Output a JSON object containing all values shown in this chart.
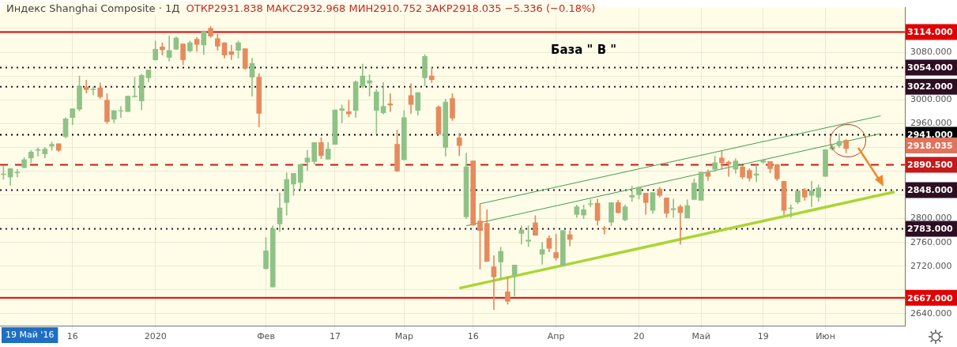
{
  "chart_data": {
    "type": "candlestick",
    "title": "Индекс Shanghai Composite · 1Д",
    "subtitle": "ОТКР2931.838 МАКС2932.968 МИН2910.752 ЗАКР2918.035 −5.336 (−0.18%)",
    "categories": [
      null,
      null,
      null,
      null,
      null,
      null,
      null,
      null,
      null,
      null,
      "16",
      null,
      null,
      null,
      null,
      null,
      null,
      null,
      null,
      null,
      null,
      null,
      "2020",
      null,
      null,
      null,
      null,
      null,
      null,
      null,
      null,
      null,
      null,
      null,
      null,
      null,
      null,
      null,
      "Фев",
      null,
      null,
      null,
      null,
      null,
      null,
      null,
      null,
      null,
      "17",
      null,
      null,
      null,
      null,
      null,
      null,
      null,
      null,
      null,
      "Мар",
      null,
      null,
      null,
      null,
      null,
      null,
      null,
      null,
      null,
      "16",
      null,
      null,
      null,
      null,
      null,
      null,
      null,
      null,
      null,
      null,
      null,
      "Апр",
      null,
      null,
      null,
      null,
      null,
      null,
      null,
      null,
      null,
      null,
      null,
      "20",
      null,
      null,
      null,
      null,
      null,
      null,
      null,
      null,
      "Май",
      null,
      null,
      null,
      null,
      null,
      null,
      null,
      null,
      "19",
      null,
      null,
      null,
      null,
      null,
      null,
      null,
      null,
      "Июн",
      null,
      null,
      null,
      null,
      null,
      null,
      null,
      null,
      null,
      null,
      null
    ],
    "ohlc": [
      [
        2874,
        2888,
        2866,
        2875
      ],
      [
        2870,
        2884,
        2856,
        2884
      ],
      [
        2877,
        2883,
        2870,
        2878
      ],
      [
        2886,
        2903,
        2885,
        2899
      ],
      [
        2902,
        2915,
        2894,
        2912
      ],
      [
        2915,
        2919,
        2905,
        2916
      ],
      [
        2909,
        2920,
        2902,
        2917
      ],
      [
        2922,
        2929,
        2915,
        2925
      ],
      [
        2926,
        2926,
        2913,
        2915
      ],
      [
        2938,
        2970,
        2936,
        2968
      ],
      [
        2970,
        2985,
        2958,
        2985
      ],
      [
        2984,
        3040,
        2981,
        3023
      ],
      [
        3021,
        3033,
        3011,
        3017
      ],
      [
        3017,
        3022,
        3008,
        3018
      ],
      [
        3020,
        3028,
        3002,
        3005
      ],
      [
        2999,
        3010,
        2960,
        2963
      ],
      [
        2967,
        2982,
        2961,
        2982
      ],
      [
        2981,
        2989,
        2970,
        2982
      ],
      [
        2980,
        3006,
        2980,
        3006
      ],
      [
        3005,
        3038,
        3004,
        3006
      ],
      [
        2998,
        3043,
        2983,
        3041
      ],
      [
        3037,
        3050,
        3030,
        3050
      ],
      [
        3067,
        3099,
        3066,
        3085
      ],
      [
        3089,
        3096,
        3075,
        3084
      ],
      [
        3071,
        3107,
        3065,
        3083
      ],
      [
        3085,
        3106,
        3084,
        3104
      ],
      [
        3094,
        3094,
        3059,
        3067
      ],
      [
        3082,
        3099,
        3080,
        3096
      ],
      [
        3102,
        3105,
        3081,
        3093
      ],
      [
        3092,
        3116,
        3076,
        3114
      ],
      [
        3120,
        3123,
        3105,
        3107
      ],
      [
        3103,
        3110,
        3083,
        3090
      ],
      [
        3096,
        3096,
        3070,
        3075
      ],
      [
        3081,
        3092,
        3067,
        3076
      ],
      [
        3083,
        3099,
        3070,
        3096
      ],
      [
        3086,
        3086,
        3051,
        3053
      ],
      [
        3038,
        3070,
        3006,
        3061
      ],
      [
        3038,
        3044,
        2954,
        2977
      ],
      [
        2716,
        2768,
        2715,
        2746
      ],
      [
        2685,
        2788,
        2685,
        2783
      ],
      [
        2791,
        2843,
        2778,
        2818
      ],
      [
        2827,
        2877,
        2806,
        2866
      ],
      [
        2858,
        2876,
        2839,
        2876
      ],
      [
        2861,
        2891,
        2849,
        2891
      ],
      [
        2895,
        2915,
        2881,
        2902
      ],
      [
        2896,
        2928,
        2892,
        2928
      ],
      [
        2928,
        2936,
        2901,
        2906
      ],
      [
        2900,
        2928,
        2900,
        2917
      ],
      [
        2925,
        2983,
        2925,
        2983
      ],
      [
        2982,
        2991,
        2961,
        2985
      ],
      [
        2980,
        2999,
        2971,
        2976
      ],
      [
        2982,
        3032,
        2970,
        3030
      ],
      [
        3023,
        3060,
        3020,
        3040
      ],
      [
        3028,
        3042,
        3006,
        3032
      ],
      [
        2982,
        3017,
        2943,
        3013
      ],
      [
        2978,
        3029,
        2976,
        2989
      ],
      [
        2993,
        3010,
        2980,
        2991
      ],
      [
        2925,
        2949,
        2879,
        2880
      ],
      [
        2899,
        2982,
        2899,
        2970
      ],
      [
        3007,
        3027,
        2977,
        2992
      ],
      [
        2982,
        3012,
        2974,
        3012
      ],
      [
        3037,
        3076,
        3023,
        3073
      ],
      [
        3040,
        3054,
        3029,
        3034
      ],
      [
        2988,
        2990,
        2942,
        2942
      ],
      [
        2920,
        3001,
        2905,
        2996
      ],
      [
        3002,
        3010,
        2965,
        2969
      ],
      [
        2936,
        2944,
        2906,
        2923
      ],
      [
        2803,
        2910,
        2800,
        2887
      ],
      [
        2897,
        2897,
        2789,
        2789
      ],
      [
        2796,
        2825,
        2715,
        2780
      ],
      [
        2792,
        2815,
        2728,
        2728
      ],
      [
        2719,
        2738,
        2647,
        2702
      ],
      [
        2727,
        2752,
        2697,
        2745
      ],
      [
        2677,
        2702,
        2656,
        2661
      ],
      [
        2704,
        2722,
        2670,
        2722
      ],
      [
        2775,
        2788,
        2757,
        2781
      ],
      [
        2762,
        2788,
        2753,
        2764
      ],
      [
        2793,
        2805,
        2772,
        2772
      ],
      [
        2740,
        2760,
        2723,
        2748
      ],
      [
        2767,
        2771,
        2744,
        2750
      ],
      [
        2743,
        2774,
        2730,
        2734
      ],
      [
        2721,
        2780,
        2721,
        2780
      ],
      [
        2773,
        2780,
        2754,
        2765
      ],
      [
        2807,
        2823,
        2802,
        2820
      ],
      [
        2806,
        2823,
        2800,
        2815
      ],
      [
        2824,
        2832,
        2820,
        2825
      ],
      [
        2826,
        2833,
        2789,
        2797
      ],
      [
        2784,
        2787,
        2774,
        2783
      ],
      [
        2794,
        2827,
        2788,
        2827
      ],
      [
        2827,
        2831,
        2809,
        2810
      ],
      [
        2798,
        2823,
        2796,
        2820
      ],
      [
        2836,
        2855,
        2829,
        2839
      ],
      [
        2840,
        2853,
        2833,
        2853
      ],
      [
        2843,
        2843,
        2807,
        2827
      ],
      [
        2814,
        2844,
        2809,
        2844
      ],
      [
        2850,
        2853,
        2836,
        2839
      ],
      [
        2835,
        2835,
        2802,
        2809
      ],
      [
        2815,
        2833,
        2802,
        2817
      ],
      [
        2820,
        2823,
        2757,
        2810
      ],
      [
        2801,
        2832,
        2801,
        2822
      ],
      [
        2832,
        2867,
        2832,
        2860
      ],
      [
        2831,
        2878,
        2831,
        2878
      ],
      [
        2877,
        2882,
        2864,
        2871
      ],
      [
        2883,
        2905,
        2879,
        2894
      ],
      [
        2902,
        2914,
        2883,
        2894
      ],
      [
        2895,
        2897,
        2871,
        2892
      ],
      [
        2883,
        2901,
        2876,
        2897
      ],
      [
        2887,
        2889,
        2867,
        2870
      ],
      [
        2881,
        2884,
        2863,
        2868
      ],
      [
        2873,
        2890,
        2862,
        2875
      ],
      [
        2895,
        2900,
        2893,
        2898
      ],
      [
        2896,
        2896,
        2877,
        2884
      ],
      [
        2891,
        2891,
        2864,
        2867
      ],
      [
        2863,
        2863,
        2807,
        2814
      ],
      [
        2817,
        2823,
        2802,
        2818
      ],
      [
        2828,
        2847,
        2825,
        2847
      ],
      [
        2848,
        2851,
        2831,
        2836
      ],
      [
        2839,
        2863,
        2820,
        2847
      ],
      [
        2836,
        2857,
        2829,
        2852
      ],
      [
        2871,
        2916,
        2871,
        2916
      ],
      [
        2917,
        2925,
        2915,
        2921
      ],
      [
        2923,
        2943,
        2920,
        2930
      ],
      [
        2931.838,
        2932.968,
        2910.752,
        2918.035
      ],
      null,
      null,
      null,
      null,
      null,
      null,
      null,
      null
    ],
    "colors": [
      "#8fc287",
      "#8fc287",
      "#8fc287",
      "#8fc287",
      "#8fc287",
      "#8fc287",
      "#8fc287",
      "#8fc287",
      "#e58b5f",
      "#8fc287",
      "#8fc287",
      "#8fc287",
      "#e58b5f",
      "#8fc287",
      "#e58b5f",
      "#e58b5f",
      "#8fc287",
      "#8fc287",
      "#8fc287",
      "#8fc287",
      "#8fc287",
      "#8fc287",
      "#8fc287",
      "#e58b5f",
      "#8fc287",
      "#8fc287",
      "#e58b5f",
      "#8fc287",
      "#e58b5f",
      "#8fc287",
      "#e58b5f",
      "#e58b5f",
      "#e58b5f",
      "#e58b5f",
      "#8fc287",
      "#e58b5f",
      "#8fc287",
      "#e58b5f",
      "#8fc287",
      "#8fc287",
      "#8fc287",
      "#8fc287",
      "#8fc287",
      "#8fc287",
      "#8fc287",
      "#8fc287",
      "#e58b5f",
      "#8fc287",
      "#8fc287",
      "#8fc287",
      "#e58b5f",
      "#8fc287",
      "#8fc287",
      "#8fc287",
      "#8fc287",
      "#8fc287",
      "#e58b5f",
      "#e58b5f",
      "#8fc287",
      "#e58b5f",
      "#8fc287",
      "#8fc287",
      "#e58b5f",
      "#e58b5f",
      "#8fc287",
      "#e58b5f",
      "#e58b5f",
      "#8fc287",
      "#e58b5f",
      "#e58b5f",
      "#e58b5f",
      "#e58b5f",
      "#8fc287",
      "#e58b5f",
      "#8fc287",
      "#8fc287",
      "#8fc287",
      "#e58b5f",
      "#8fc287",
      "#e58b5f",
      "#e58b5f",
      "#8fc287",
      "#e58b5f",
      "#8fc287",
      "#8fc287",
      "#8fc287",
      "#e58b5f",
      "#e58b5f",
      "#8fc287",
      "#e58b5f",
      "#8fc287",
      "#8fc287",
      "#8fc287",
      "#e58b5f",
      "#8fc287",
      "#e58b5f",
      "#e58b5f",
      "#8fc287",
      "#e58b5f",
      "#8fc287",
      "#8fc287",
      "#8fc287",
      "#e58b5f",
      "#8fc287",
      "#e58b5f",
      "#e58b5f",
      "#8fc287",
      "#e58b5f",
      "#e58b5f",
      "#8fc287",
      "#8fc287",
      "#e58b5f",
      "#e58b5f",
      "#e58b5f",
      "#8fc287",
      "#8fc287",
      "#e58b5f",
      "#8fc287",
      "#8fc287",
      "#8fc287",
      "#8fc287",
      "#8fc287",
      "#e58b5f",
      null,
      null,
      null,
      null,
      null,
      null,
      null,
      null
    ],
    "series": [
      {
        "type": "line",
        "color": "#3f9f52",
        "values": [
          null,
          null,
          null,
          null,
          null,
          null,
          null,
          null,
          null,
          null,
          null,
          null,
          null,
          null,
          null,
          null,
          null,
          null,
          null,
          null,
          null,
          null,
          null,
          null,
          null,
          null,
          null,
          null,
          null,
          null,
          null,
          null,
          null,
          null,
          null,
          null,
          null,
          null,
          null,
          null,
          null,
          null,
          null,
          null,
          null,
          null,
          null,
          null,
          null,
          null,
          null,
          null,
          null,
          null,
          null,
          null,
          null,
          null,
          null,
          null,
          null,
          null,
          null,
          null,
          null,
          null,
          null,
          null,
          null,
          2825,
          null,
          null,
          null,
          null,
          null,
          null,
          null,
          null,
          null,
          null,
          null,
          null,
          null,
          null,
          null,
          null,
          null,
          null,
          null,
          null,
          null,
          null,
          null,
          null,
          null,
          null,
          null,
          null,
          null,
          null,
          null,
          null,
          null,
          null,
          null,
          null,
          null,
          null,
          null,
          null,
          null,
          null,
          null,
          null,
          null,
          null,
          null,
          null,
          null,
          null,
          null,
          null,
          null,
          null,
          null,
          null,
          null,
          2973,
          null,
          null,
          null
        ]
      },
      {
        "type": "line",
        "color": "#3f9f52",
        "values": [
          null,
          null,
          null,
          null,
          null,
          null,
          null,
          null,
          null,
          null,
          null,
          null,
          null,
          null,
          null,
          null,
          null,
          null,
          null,
          null,
          null,
          null,
          null,
          null,
          null,
          null,
          null,
          null,
          null,
          null,
          null,
          null,
          null,
          null,
          null,
          null,
          null,
          null,
          null,
          null,
          null,
          null,
          null,
          null,
          null,
          null,
          null,
          null,
          null,
          null,
          null,
          null,
          null,
          null,
          null,
          null,
          null,
          null,
          null,
          null,
          null,
          null,
          null,
          null,
          null,
          null,
          null,
          2788,
          null,
          null,
          null,
          null,
          null,
          null,
          null,
          null,
          null,
          null,
          null,
          null,
          null,
          null,
          null,
          null,
          null,
          null,
          null,
          null,
          null,
          null,
          null,
          null,
          null,
          null,
          null,
          null,
          null,
          null,
          null,
          null,
          null,
          null,
          null,
          null,
          null,
          null,
          null,
          null,
          null,
          null,
          null,
          null,
          null,
          null,
          null,
          null,
          null,
          null,
          null,
          null,
          null,
          null,
          null,
          null,
          null,
          null,
          null,
          2943,
          null,
          null,
          null
        ]
      },
      {
        "type": "line",
        "color": "#a8d634",
        "values": [
          null,
          null,
          null,
          null,
          null,
          null,
          null,
          null,
          null,
          null,
          null,
          null,
          null,
          null,
          null,
          null,
          null,
          null,
          null,
          null,
          null,
          null,
          null,
          null,
          null,
          null,
          null,
          null,
          null,
          null,
          null,
          null,
          null,
          null,
          null,
          null,
          null,
          null,
          null,
          null,
          null,
          null,
          null,
          null,
          null,
          null,
          null,
          null,
          null,
          null,
          null,
          null,
          null,
          null,
          null,
          null,
          null,
          null,
          null,
          null,
          null,
          null,
          null,
          null,
          null,
          null,
          2683,
          null,
          null,
          null,
          null,
          null,
          null,
          null,
          null,
          null,
          null,
          null,
          null,
          null,
          null,
          null,
          null,
          null,
          null,
          null,
          null,
          null,
          null,
          null,
          null,
          null,
          null,
          null,
          null,
          null,
          null,
          null,
          null,
          null,
          null,
          null,
          null,
          null,
          null,
          null,
          null,
          null,
          null,
          null,
          null,
          null,
          null,
          null,
          null,
          null,
          null,
          null,
          null,
          null,
          null,
          null,
          null,
          null,
          null,
          null,
          null,
          null,
          null,
          2845,
          null
        ]
      }
    ],
    "ylim": [
      2620,
      3155
    ],
    "yticks": [
      {
        "value": 2640,
        "label": "2640.000"
      },
      {
        "value": 2680,
        "label": null
      },
      {
        "value": 2720,
        "label": "2720.000"
      },
      {
        "value": 2760,
        "label": "2760.000"
      },
      {
        "value": 2800,
        "label": "2800.000"
      },
      {
        "value": 2840,
        "label": null
      },
      {
        "value": 2880,
        "label": null
      },
      {
        "value": 2920,
        "label": null
      },
      {
        "value": 2960,
        "label": "2960.000"
      },
      {
        "value": 3000,
        "label": "3000.000"
      },
      {
        "value": 3040,
        "label": null
      },
      {
        "value": 3080,
        "label": "3080.000"
      },
      {
        "value": 3120,
        "label": null
      }
    ],
    "grid": true,
    "legend": false,
    "marker": "none",
    "ref_lines": [
      {
        "axis": "y",
        "value": 3114,
        "label": "3114.000",
        "color": "#e00000",
        "line_style": "solid"
      },
      {
        "axis": "y",
        "value": 3054,
        "label": "3054.000",
        "color": "#2e0f22",
        "line_style": "dotted"
      },
      {
        "axis": "y",
        "value": 3022,
        "label": "3022.000",
        "color": "#2e0f22",
        "line_style": "dotted"
      },
      {
        "axis": "y",
        "value": 2941,
        "label": "2941.000",
        "color": "#000000",
        "line_style": "dotted"
      },
      {
        "axis": "y",
        "value": 2890.5,
        "label": "2890.500",
        "color": "#c41a1a",
        "line_style": "dashed"
      },
      {
        "axis": "y",
        "value": 2848,
        "label": "2848.000",
        "color": "#2e0f22",
        "line_style": "dotted"
      },
      {
        "axis": "y",
        "value": 2783,
        "label": "2783.000",
        "color": "#2e0f22",
        "line_style": "dotted"
      },
      {
        "axis": "y",
        "value": 2667,
        "label": "2667.000",
        "color": "#e00000",
        "line_style": "solid"
      }
    ],
    "annotations": [
      "База \" В \"",
      "2918.035",
      "19 Май '16"
    ]
  }
}
